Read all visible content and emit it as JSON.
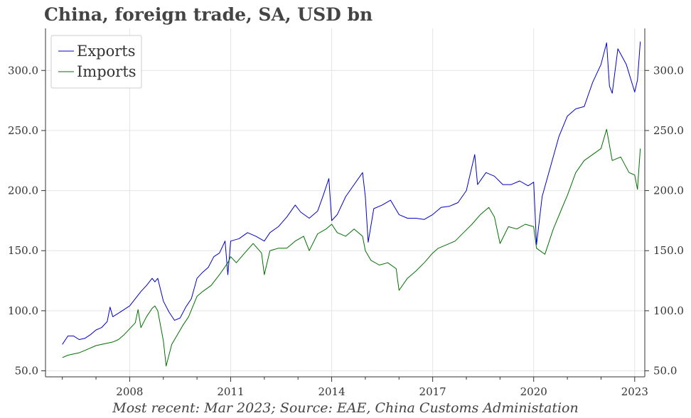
{
  "header": {
    "title": "China, foreign trade, SA, USD bn"
  },
  "footer": {
    "note": "Most recent: Mar 2023; Source: EAE, China Customs Administation"
  },
  "colors": {
    "exports": "#0000cc",
    "imports": "#007000",
    "grid": "#e4e4e4",
    "axis": "#333333"
  },
  "chart_data": {
    "type": "line",
    "title": "China, foreign trade, SA, USD bn",
    "xlabel": "",
    "ylabel": "",
    "x_ticks": [
      "2008",
      "2011",
      "2014",
      "2017",
      "2020",
      "2023"
    ],
    "x_tick_years": [
      2008,
      2011,
      2014,
      2017,
      2020,
      2023
    ],
    "y_ticks": [
      "50.0",
      "100.0",
      "150.0",
      "200.0",
      "250.0",
      "300.0"
    ],
    "y_tick_values": [
      50,
      100,
      150,
      200,
      250,
      300
    ],
    "xlim": [
      2005.5,
      2023.3
    ],
    "ylim": [
      45,
      335
    ],
    "grid": true,
    "y_axis_both_sides": true,
    "legend_position": "top-left",
    "series": [
      {
        "name": "Exports",
        "points": [
          [
            "2006-01",
            72
          ],
          [
            "2006-03",
            79
          ],
          [
            "2006-05",
            79
          ],
          [
            "2006-07",
            76
          ],
          [
            "2006-09",
            77
          ],
          [
            "2006-11",
            80
          ],
          [
            "2007-01",
            84
          ],
          [
            "2007-03",
            86
          ],
          [
            "2007-05",
            91
          ],
          [
            "2007-06",
            103
          ],
          [
            "2007-07",
            95
          ],
          [
            "2007-09",
            98
          ],
          [
            "2007-11",
            101
          ],
          [
            "2008-01",
            104
          ],
          [
            "2008-03",
            110
          ],
          [
            "2008-05",
            116
          ],
          [
            "2008-07",
            121
          ],
          [
            "2008-09",
            127
          ],
          [
            "2008-10",
            124
          ],
          [
            "2008-11",
            127
          ],
          [
            "2009-01",
            108
          ],
          [
            "2009-03",
            99
          ],
          [
            "2009-05",
            92
          ],
          [
            "2009-07",
            94
          ],
          [
            "2009-09",
            103
          ],
          [
            "2009-11",
            110
          ],
          [
            "2010-01",
            127
          ],
          [
            "2010-03",
            132
          ],
          [
            "2010-05",
            136
          ],
          [
            "2010-07",
            145
          ],
          [
            "2010-09",
            148
          ],
          [
            "2010-11",
            158
          ],
          [
            "2010-12",
            130
          ],
          [
            "2011-01",
            158
          ],
          [
            "2011-04",
            160
          ],
          [
            "2011-07",
            165
          ],
          [
            "2011-10",
            162
          ],
          [
            "2012-01",
            158
          ],
          [
            "2012-03",
            165
          ],
          [
            "2012-06",
            170
          ],
          [
            "2012-09",
            178
          ],
          [
            "2012-12",
            188
          ],
          [
            "2013-02",
            182
          ],
          [
            "2013-05",
            177
          ],
          [
            "2013-08",
            183
          ],
          [
            "2013-10",
            196
          ],
          [
            "2013-12",
            210
          ],
          [
            "2014-01",
            175
          ],
          [
            "2014-03",
            180
          ],
          [
            "2014-06",
            195
          ],
          [
            "2014-09",
            205
          ],
          [
            "2014-12",
            215
          ],
          [
            "2015-01",
            195
          ],
          [
            "2015-02",
            157
          ],
          [
            "2015-04",
            185
          ],
          [
            "2015-07",
            188
          ],
          [
            "2015-10",
            192
          ],
          [
            "2016-01",
            180
          ],
          [
            "2016-04",
            177
          ],
          [
            "2016-07",
            177
          ],
          [
            "2016-10",
            176
          ],
          [
            "2017-01",
            180
          ],
          [
            "2017-04",
            186
          ],
          [
            "2017-07",
            187
          ],
          [
            "2017-10",
            190
          ],
          [
            "2018-01",
            200
          ],
          [
            "2018-04",
            230
          ],
          [
            "2018-05",
            205
          ],
          [
            "2018-08",
            215
          ],
          [
            "2018-11",
            212
          ],
          [
            "2019-02",
            205
          ],
          [
            "2019-05",
            205
          ],
          [
            "2019-08",
            208
          ],
          [
            "2019-11",
            204
          ],
          [
            "2020-01",
            207
          ],
          [
            "2020-02",
            155
          ],
          [
            "2020-04",
            195
          ],
          [
            "2020-07",
            220
          ],
          [
            "2020-10",
            245
          ],
          [
            "2021-01",
            262
          ],
          [
            "2021-04",
            268
          ],
          [
            "2021-07",
            270
          ],
          [
            "2021-10",
            290
          ],
          [
            "2022-01",
            305
          ],
          [
            "2022-03",
            323
          ],
          [
            "2022-04",
            287
          ],
          [
            "2022-05",
            281
          ],
          [
            "2022-07",
            318
          ],
          [
            "2022-10",
            305
          ],
          [
            "2023-01",
            282
          ],
          [
            "2023-02",
            292
          ],
          [
            "2023-03",
            324
          ]
        ]
      },
      {
        "name": "Imports",
        "points": [
          [
            "2006-01",
            61
          ],
          [
            "2006-03",
            63
          ],
          [
            "2006-05",
            64
          ],
          [
            "2006-07",
            65
          ],
          [
            "2006-09",
            67
          ],
          [
            "2006-11",
            69
          ],
          [
            "2007-01",
            71
          ],
          [
            "2007-03",
            72
          ],
          [
            "2007-05",
            73
          ],
          [
            "2007-07",
            74
          ],
          [
            "2007-09",
            76
          ],
          [
            "2007-11",
            80
          ],
          [
            "2008-01",
            85
          ],
          [
            "2008-03",
            90
          ],
          [
            "2008-04",
            101
          ],
          [
            "2008-05",
            86
          ],
          [
            "2008-07",
            95
          ],
          [
            "2008-09",
            102
          ],
          [
            "2008-10",
            104
          ],
          [
            "2008-11",
            100
          ],
          [
            "2009-01",
            75
          ],
          [
            "2009-02",
            54
          ],
          [
            "2009-04",
            72
          ],
          [
            "2009-06",
            80
          ],
          [
            "2009-08",
            88
          ],
          [
            "2009-10",
            95
          ],
          [
            "2010-01",
            112
          ],
          [
            "2010-03",
            116
          ],
          [
            "2010-06",
            121
          ],
          [
            "2010-09",
            130
          ],
          [
            "2010-12",
            140
          ],
          [
            "2011-01",
            145
          ],
          [
            "2011-03",
            140
          ],
          [
            "2011-06",
            148
          ],
          [
            "2011-09",
            156
          ],
          [
            "2011-12",
            148
          ],
          [
            "2012-01",
            130
          ],
          [
            "2012-03",
            150
          ],
          [
            "2012-06",
            152
          ],
          [
            "2012-09",
            152
          ],
          [
            "2012-12",
            158
          ],
          [
            "2013-03",
            162
          ],
          [
            "2013-05",
            150
          ],
          [
            "2013-08",
            164
          ],
          [
            "2013-11",
            168
          ],
          [
            "2014-01",
            172
          ],
          [
            "2014-03",
            165
          ],
          [
            "2014-06",
            162
          ],
          [
            "2014-09",
            168
          ],
          [
            "2014-12",
            162
          ],
          [
            "2015-01",
            150
          ],
          [
            "2015-03",
            142
          ],
          [
            "2015-06",
            138
          ],
          [
            "2015-09",
            140
          ],
          [
            "2015-12",
            135
          ],
          [
            "2016-01",
            117
          ],
          [
            "2016-04",
            127
          ],
          [
            "2016-07",
            133
          ],
          [
            "2016-10",
            140
          ],
          [
            "2017-01",
            148
          ],
          [
            "2017-03",
            152
          ],
          [
            "2017-06",
            155
          ],
          [
            "2017-09",
            158
          ],
          [
            "2017-12",
            165
          ],
          [
            "2018-03",
            172
          ],
          [
            "2018-06",
            180
          ],
          [
            "2018-09",
            186
          ],
          [
            "2018-11",
            178
          ],
          [
            "2019-01",
            156
          ],
          [
            "2019-04",
            170
          ],
          [
            "2019-07",
            168
          ],
          [
            "2019-10",
            172
          ],
          [
            "2020-01",
            170
          ],
          [
            "2020-02",
            152
          ],
          [
            "2020-05",
            147
          ],
          [
            "2020-08",
            168
          ],
          [
            "2020-11",
            185
          ],
          [
            "2021-01",
            196
          ],
          [
            "2021-04",
            215
          ],
          [
            "2021-07",
            225
          ],
          [
            "2021-10",
            230
          ],
          [
            "2022-01",
            235
          ],
          [
            "2022-03",
            251
          ],
          [
            "2022-05",
            225
          ],
          [
            "2022-08",
            228
          ],
          [
            "2022-11",
            215
          ],
          [
            "2023-01",
            213
          ],
          [
            "2023-02",
            201
          ],
          [
            "2023-03",
            235
          ]
        ]
      }
    ]
  }
}
